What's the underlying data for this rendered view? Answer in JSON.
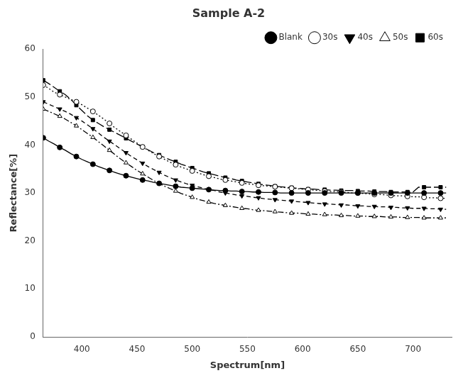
{
  "chart_data": {
    "type": "line",
    "title": "Sample A-2",
    "xlabel": "Spectrum[nm]",
    "ylabel": "Reflectance[%]",
    "xlim": [
      365,
      735
    ],
    "ylim": [
      0,
      60
    ],
    "xticks": [
      400,
      450,
      500,
      550,
      600,
      650,
      700
    ],
    "yticks": [
      0,
      10,
      20,
      30,
      40,
      50,
      60
    ],
    "grid": false,
    "legend": "upper right",
    "x": [
      365,
      370,
      375,
      380,
      385,
      390,
      395,
      400,
      405,
      410,
      415,
      420,
      425,
      430,
      435,
      440,
      445,
      450,
      455,
      460,
      465,
      470,
      475,
      480,
      485,
      490,
      495,
      500,
      505,
      510,
      515,
      520,
      525,
      530,
      535,
      540,
      545,
      550,
      555,
      560,
      565,
      570,
      575,
      580,
      585,
      590,
      595,
      600,
      605,
      610,
      615,
      620,
      625,
      630,
      635,
      640,
      645,
      650,
      655,
      660,
      665,
      670,
      675,
      680,
      685,
      690,
      695,
      700,
      705,
      710,
      715,
      720,
      725,
      730
    ],
    "series": [
      {
        "name": "Blank",
        "color": "#000000",
        "marker": "filled_circle",
        "line_style": "solid",
        "values": [
          41.5,
          40.8,
          40.2,
          39.5,
          38.9,
          38.2,
          37.6,
          37.0,
          36.5,
          36.0,
          35.5,
          35.1,
          34.7,
          34.3,
          33.9,
          33.6,
          33.3,
          33.0,
          32.7,
          32.5,
          32.2,
          32.0,
          31.8,
          31.6,
          31.4,
          31.2,
          31.1,
          31.0,
          30.9,
          30.8,
          30.7,
          30.6,
          30.5,
          30.5,
          30.4,
          30.4,
          30.3,
          30.3,
          30.2,
          30.2,
          30.1,
          30.1,
          30.1,
          30.0,
          30.0,
          30.0,
          30.0,
          30.0,
          30.0,
          30.0,
          30.0,
          30.0,
          30.0,
          30.0,
          30.0,
          30.0,
          30.0,
          30.0,
          30.0,
          30.0,
          30.0,
          30.0,
          30.0,
          30.0,
          30.0,
          30.0,
          30.0,
          30.0,
          30.0,
          30.0,
          30.0,
          30.0,
          30.0,
          30.0
        ]
      },
      {
        "name": "30s",
        "color": "#000000",
        "marker": "open_circle",
        "line_style": "dotted",
        "values": [
          52.5,
          51.8,
          51.0,
          50.5,
          50.0,
          49.5,
          49.0,
          48.4,
          47.7,
          47.0,
          46.2,
          45.4,
          44.5,
          43.6,
          42.8,
          42.0,
          41.2,
          40.4,
          39.6,
          38.9,
          38.2,
          37.6,
          37.0,
          36.4,
          35.9,
          35.4,
          35.0,
          34.6,
          34.2,
          33.8,
          33.5,
          33.2,
          32.9,
          32.7,
          32.5,
          32.3,
          32.1,
          31.9,
          31.8,
          31.6,
          31.5,
          31.4,
          31.3,
          31.2,
          31.1,
          31.0,
          30.9,
          30.8,
          30.7,
          30.6,
          30.5,
          30.4,
          30.3,
          30.3,
          30.2,
          30.1,
          30.0,
          30.0,
          29.9,
          29.8,
          29.7,
          29.7,
          29.6,
          29.5,
          29.4,
          29.4,
          29.3,
          29.2,
          29.2,
          29.1,
          29.0,
          29.0,
          28.9,
          28.9
        ]
      },
      {
        "name": "40s",
        "color": "#000000",
        "marker": "filled_triangle_down",
        "line_style": "dashed",
        "values": [
          49.0,
          48.5,
          48.0,
          47.5,
          47.0,
          46.4,
          45.7,
          45.0,
          44.2,
          43.4,
          42.5,
          41.6,
          40.8,
          40.0,
          39.2,
          38.4,
          37.6,
          36.9,
          36.2,
          35.5,
          34.9,
          34.3,
          33.7,
          33.2,
          32.7,
          32.3,
          31.9,
          31.6,
          31.3,
          31.0,
          30.7,
          30.5,
          30.2,
          30.0,
          29.8,
          29.6,
          29.4,
          29.3,
          29.1,
          29.0,
          28.8,
          28.7,
          28.6,
          28.5,
          28.4,
          28.3,
          28.2,
          28.1,
          28.0,
          27.9,
          27.8,
          27.7,
          27.7,
          27.6,
          27.5,
          27.5,
          27.4,
          27.3,
          27.3,
          27.2,
          27.2,
          27.1,
          27.1,
          27.0,
          27.0,
          26.9,
          26.9,
          26.8,
          26.8,
          26.8,
          26.7,
          26.7,
          26.6,
          26.6
        ]
      },
      {
        "name": "50s",
        "color": "#000000",
        "marker": "open_triangle_up",
        "line_style": "dashdot",
        "values": [
          47.5,
          47.0,
          46.5,
          46.0,
          45.4,
          44.7,
          44.0,
          43.2,
          42.4,
          41.6,
          40.7,
          39.8,
          38.9,
          38.0,
          37.1,
          36.3,
          35.5,
          34.7,
          34.0,
          33.3,
          32.6,
          32.0,
          31.4,
          30.9,
          30.4,
          29.9,
          29.5,
          29.1,
          28.7,
          28.4,
          28.1,
          27.8,
          27.6,
          27.4,
          27.2,
          27.0,
          26.8,
          26.7,
          26.5,
          26.4,
          26.3,
          26.2,
          26.1,
          26.0,
          25.9,
          25.8,
          25.8,
          25.7,
          25.6,
          25.6,
          25.5,
          25.5,
          25.4,
          25.4,
          25.3,
          25.3,
          25.2,
          25.2,
          25.2,
          25.1,
          25.1,
          25.1,
          25.0,
          25.0,
          25.0,
          24.9,
          24.9,
          24.9,
          24.9,
          24.8,
          24.8,
          24.8,
          24.8,
          24.8
        ]
      },
      {
        "name": "60s",
        "color": "#000000",
        "marker": "filled_square",
        "line_style": "longdash",
        "values": [
          53.5,
          52.8,
          52.0,
          51.2,
          50.5,
          49.5,
          48.3,
          47.2,
          46.1,
          45.2,
          44.5,
          43.8,
          43.2,
          42.6,
          42.0,
          41.4,
          40.8,
          40.2,
          39.6,
          39.0,
          38.4,
          37.9,
          37.4,
          36.9,
          36.5,
          36.0,
          35.6,
          35.2,
          34.8,
          34.4,
          34.1,
          33.8,
          33.5,
          33.2,
          33.0,
          32.7,
          32.5,
          32.3,
          32.1,
          31.9,
          31.7,
          31.6,
          31.4,
          31.3,
          31.2,
          31.1,
          31.0,
          30.9,
          30.8,
          30.8,
          30.7,
          30.7,
          30.6,
          30.6,
          30.5,
          30.5,
          30.5,
          30.4,
          30.4,
          30.4,
          30.3,
          30.3,
          30.3,
          30.2,
          30.2,
          30.2,
          30.2,
          30.2,
          31.2,
          31.2,
          31.2,
          31.2,
          31.2,
          31.2
        ]
      }
    ]
  }
}
